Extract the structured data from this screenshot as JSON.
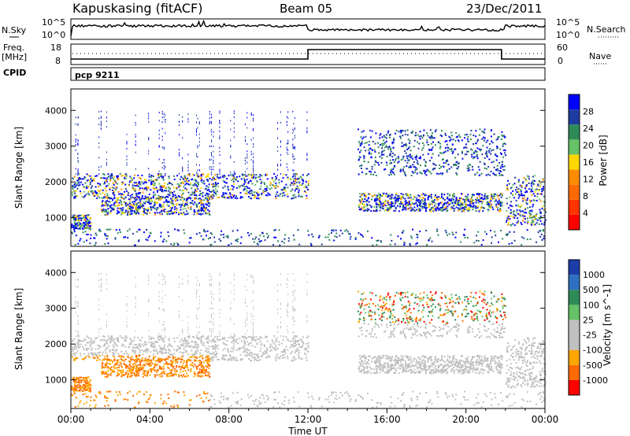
{
  "header": {
    "station": "Kapuskasing (fitACF)",
    "beam": "Beam 05",
    "date": "23/Dec/2011"
  },
  "panels": {
    "noise": {
      "left_label": "N.Sky",
      "right_label": "N.Search",
      "left_ticks": [
        "10^5",
        "10^0"
      ],
      "right_ticks": [
        "10^5",
        "10^0"
      ]
    },
    "freq": {
      "left_label_1": "Freq.",
      "left_label_2": "[MHz]",
      "right_label": "Nave",
      "left_ticks": [
        "18",
        "8"
      ],
      "right_ticks": [
        "60",
        "0"
      ]
    },
    "cpid": {
      "label": "CPID",
      "program": "pcp 9211"
    }
  },
  "colors": {
    "power_scale": [
      "#0000ff",
      "#1e3ca0",
      "#2e8b57",
      "#66c266",
      "#ffd700",
      "#ff8c00",
      "#ff6a00",
      "#ff3300",
      "#ff0000"
    ],
    "velocity_scale": [
      "#1c3ca8",
      "#2f6fc2",
      "#2e8b57",
      "#66c266",
      "#c0c0c0",
      "#c0c0c0",
      "#ffa500",
      "#ff6a00",
      "#ff0000"
    ]
  },
  "chart_data": [
    {
      "type": "heatmap",
      "title": "Power",
      "ylabel": "Slant Range [km]",
      "ylim": [
        200,
        4600
      ],
      "yticks": [
        1000,
        2000,
        3000,
        4000
      ],
      "colorbar": {
        "label": "Power [dB]",
        "ticks": [
          "28",
          "24",
          "20",
          "16",
          "12",
          "8",
          "4"
        ],
        "range": [
          0,
          30
        ]
      }
    },
    {
      "type": "heatmap",
      "title": "Velocity",
      "ylabel": "Slant Range [km]",
      "ylim": [
        200,
        4600
      ],
      "yticks": [
        1000,
        2000,
        3000,
        4000
      ],
      "colorbar": {
        "label": "Velocity [m s^-1]",
        "ticks": [
          "1000",
          "500",
          "100",
          "25",
          "-25",
          "-100",
          "-500",
          "-1000"
        ]
      }
    }
  ],
  "xaxis": {
    "label": "Time UT",
    "ticks": [
      "00:00",
      "04:00",
      "08:00",
      "12:00",
      "16:00",
      "20:00",
      "00:00"
    ]
  }
}
